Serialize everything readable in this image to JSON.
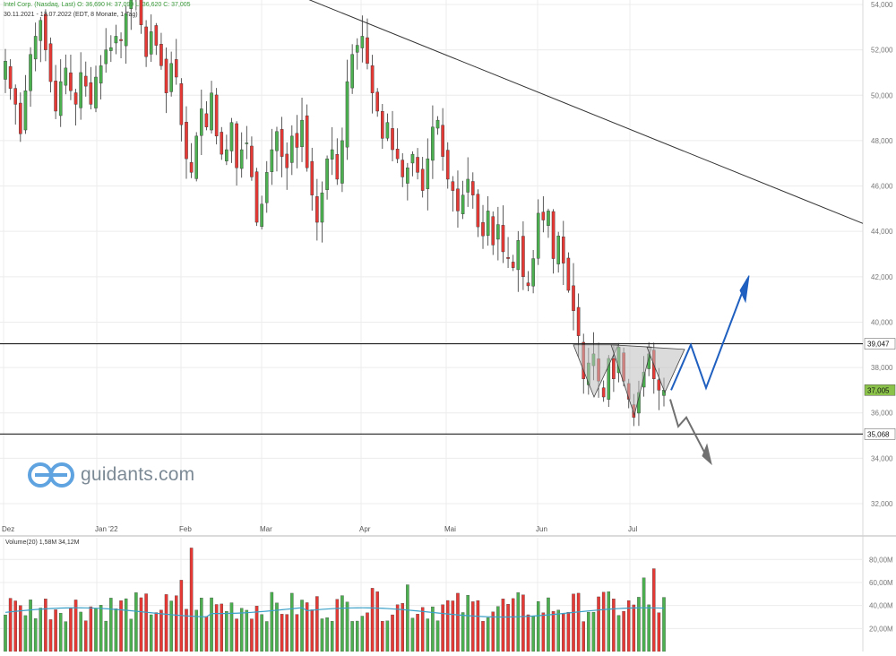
{
  "header": {
    "line1": "Intel Corp. (Nasdaq, Last)  O: 36,690  H: 37,090  L: 36,620  C: 37,005",
    "line2": "30.11.2021 - 13.07.2022  (EDT, 8 Monate, 1 Tag)"
  },
  "logo": {
    "text": "guidants.com"
  },
  "volume_header": "Volume(20)  1,58M  34,12M",
  "colors": {
    "up": "#4caf50",
    "down": "#e53935",
    "avg": "#3aa0c8",
    "blue_arrow": "#1f5fbf",
    "gray_arrow": "#707070"
  },
  "chart_data": {
    "type": "candlestick",
    "price_axis": {
      "min": 32,
      "max": 54,
      "ticks": [
        "32,000",
        "34,000",
        "36,000",
        "38,000",
        "40,000",
        "42,000",
        "44,000",
        "46,000",
        "48,000",
        "50,000",
        "52,000",
        "54,000"
      ]
    },
    "x_labels": [
      "Dez",
      "Jan '22",
      "Feb",
      "Mar",
      "Apr",
      "Mai",
      "Jun",
      "Jul"
    ],
    "price_labels": {
      "resistance": "39,047",
      "last": "37,005",
      "support": "35,068"
    },
    "levels": {
      "resistance": 39.047,
      "support": 35.068,
      "last": 37.005
    },
    "trendline": [
      [
        0,
        55.2
      ],
      [
        1,
        44.35
      ]
    ],
    "closes": [
      51.5,
      50.3,
      49.6,
      48.3,
      50.2,
      51.8,
      52.6,
      53.3,
      52.0,
      50.6,
      49.3,
      50.6,
      51.2,
      50.2,
      49.6,
      51.0,
      50.4,
      49.6,
      50.8,
      51.3,
      52.0,
      52.1,
      52.6,
      52.4,
      53.6,
      54.2,
      54.8,
      53.1,
      51.7,
      52.8,
      52.2,
      51.3,
      50.1,
      51.4,
      50.8,
      48.7,
      47.2,
      46.6,
      48.2,
      49.4,
      48.6,
      50.1,
      48.2,
      47.4,
      47.6,
      48.8,
      46.8,
      47.6,
      47.9,
      46.4,
      44.4,
      45.2,
      46.6,
      47.6,
      48.4,
      47.3,
      46.8,
      48.2,
      47.7,
      48.9,
      46.8,
      45.6,
      44.4,
      45.7,
      47.2,
      47.6,
      46.3,
      48.0,
      50.6,
      51.8,
      52.2,
      52.6,
      51.4,
      50.1,
      49.3,
      48.1,
      48.8,
      47.6,
      47.2,
      46.4,
      46.8,
      47.4,
      46.6,
      45.8,
      47.2,
      48.6,
      48.9,
      47.3,
      46.3,
      45.8,
      44.9,
      45.6,
      46.3,
      45.6,
      44.2,
      43.8,
      44.9,
      43.4,
      44.3,
      43.1,
      42.8,
      42.4,
      43.6,
      42.0,
      41.6,
      42.8,
      44.8,
      44.5,
      44.9,
      42.8,
      43.8,
      42.6,
      41.4,
      40.5,
      39.4,
      37.5,
      38.2,
      38.6,
      37.4,
      36.7,
      38.4,
      37.5,
      38.9,
      37.4,
      36.6,
      35.8,
      36.9,
      37.8,
      38.6,
      37.5,
      37.0,
      37.005
    ],
    "volume_axis": {
      "ticks": [
        "20,00M",
        "40,00M",
        "60,00M",
        "80,00M"
      ]
    },
    "pattern_note": "Inverse head-and-shoulders / triangle scenario with blue bullish and gray bearish projection arrows"
  }
}
